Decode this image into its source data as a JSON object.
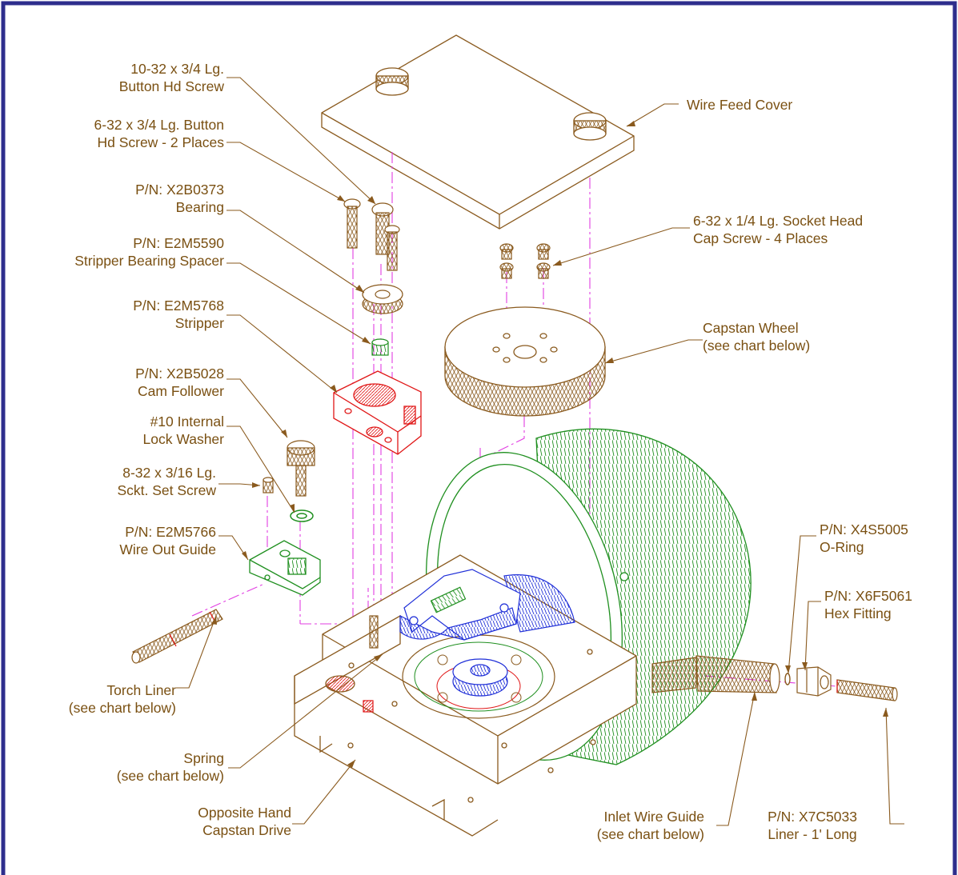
{
  "colors": {
    "border": "#2e2e8c",
    "part_line": "#8a5a1e",
    "label_text": "#7a5012",
    "center_line": "#e23ee2",
    "green_part": "#1f8f1f",
    "blue_part": "#1f2fd8",
    "red_part": "#e01616"
  },
  "labels": {
    "button_hd_screw": {
      "line1": "10-32 x 3/4 Lg.",
      "line2": "Button Hd Screw"
    },
    "button_hd_screw_2": {
      "line1": "6-32 x 3/4 Lg. Button",
      "line2": "Hd Screw - 2 Places"
    },
    "bearing": {
      "line1": "P/N: X2B0373",
      "line2": "Bearing"
    },
    "bearing_spacer": {
      "line1": "P/N: E2M5590",
      "line2": "Stripper Bearing Spacer"
    },
    "stripper": {
      "line1": "P/N: E2M5768",
      "line2": "Stripper"
    },
    "cam_follower": {
      "line1": "P/N: X2B5028",
      "line2": "Cam Follower"
    },
    "lock_washer": {
      "line1": "#10 Internal",
      "line2": "Lock Washer"
    },
    "set_screw": {
      "line1": "8-32 x 3/16 Lg.",
      "line2": "Sckt. Set Screw"
    },
    "wire_out_guide": {
      "line1": "P/N: E2M5766",
      "line2": "Wire Out Guide"
    },
    "torch_liner": {
      "line1": "Torch Liner",
      "line2": "(see chart below)"
    },
    "spring": {
      "line1": "Spring",
      "line2": "(see chart below)"
    },
    "capstan_drive": {
      "line1": "Opposite Hand",
      "line2": "Capstan Drive"
    },
    "wire_feed_cover": {
      "line1": "Wire Feed Cover"
    },
    "socket_head_screw": {
      "line1": "6-32 x 1/4 Lg. Socket Head",
      "line2": "Cap Screw - 4 Places"
    },
    "capstan_wheel": {
      "line1": "Capstan Wheel",
      "line2": "(see chart below)"
    },
    "o_ring": {
      "line1": "P/N: X4S5005",
      "line2": "O-Ring"
    },
    "hex_fitting": {
      "line1": "P/N: X6F5061",
      "line2": "Hex Fitting"
    },
    "inlet_wire_guide": {
      "line1": "Inlet Wire Guide",
      "line2": "(see chart below)"
    },
    "liner": {
      "line1": "P/N: X7C5033",
      "line2": "Liner - 1' Long"
    }
  }
}
